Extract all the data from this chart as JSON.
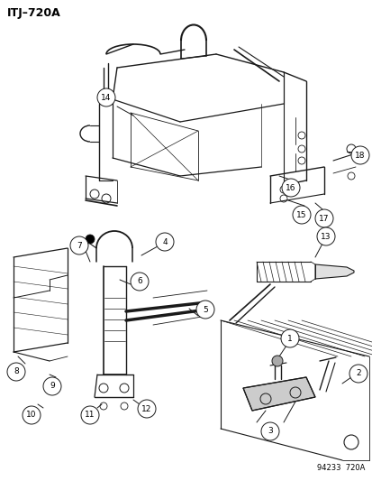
{
  "title": "ITJ–720A",
  "watermark": "94233  720A",
  "background": "#ffffff",
  "lc": "#1a1a1a",
  "figsize": [
    4.14,
    5.33
  ],
  "dpi": 100,
  "callout_r": 0.016
}
